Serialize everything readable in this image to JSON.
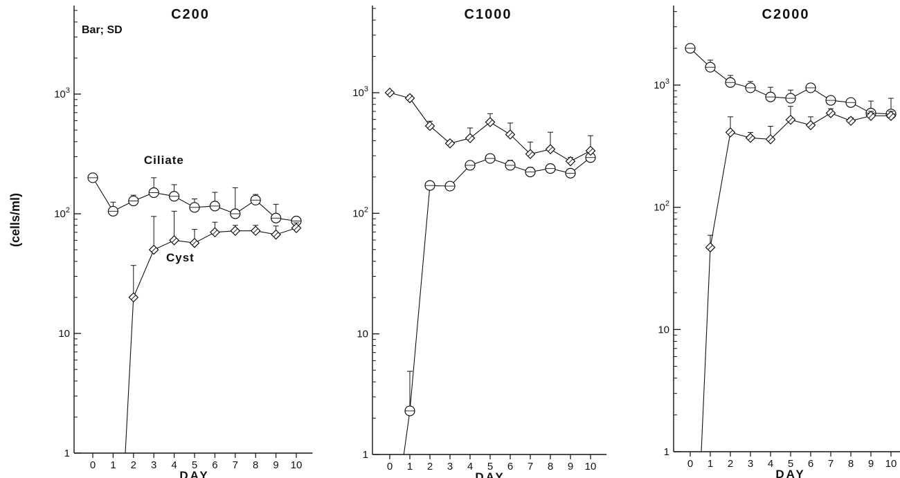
{
  "figure": {
    "ylabel": "(cells/ml)",
    "note": "Bar;  SD"
  },
  "chart_data": [
    {
      "type": "line",
      "title": "C200",
      "xlabel": "DAY",
      "ylabel": "(cells/ml)",
      "y_scale": "log",
      "ylim": [
        1,
        5000
      ],
      "xlim": [
        -0.6,
        10.8
      ],
      "x": [
        0,
        1,
        2,
        3,
        4,
        5,
        6,
        7,
        8,
        9,
        10
      ],
      "x_ticks": [
        "0",
        "1",
        "2",
        "3",
        "4",
        "5",
        "6",
        "7",
        "8",
        "9",
        "10"
      ],
      "y_ticks": [
        {
          "value": 1,
          "label": "1"
        },
        {
          "value": 10,
          "label": "10"
        },
        {
          "value": 100,
          "label": "10",
          "sup": "2"
        },
        {
          "value": 1000,
          "label": "10",
          "sup": "3"
        }
      ],
      "series": [
        {
          "name": "Ciliate",
          "marker": "circle",
          "label_x": 3.5,
          "label_y": 260,
          "x": [
            0,
            1,
            2,
            3,
            4,
            5,
            6,
            7,
            8,
            9,
            10
          ],
          "values": [
            200,
            105,
            128,
            150,
            140,
            113,
            116,
            100,
            130,
            92,
            87
          ],
          "sd": [
            0,
            20,
            15,
            50,
            35,
            20,
            35,
            65,
            15,
            28,
            0
          ]
        },
        {
          "name": "Cyst",
          "marker": "diamond",
          "label_x": 4.3,
          "label_y": 40,
          "line_start": {
            "x": 1.6,
            "y": 1
          },
          "x": [
            2,
            3,
            4,
            5,
            6,
            7,
            8,
            9,
            10
          ],
          "values": [
            20,
            50,
            60,
            57,
            70,
            72,
            72,
            67,
            76
          ],
          "sd": [
            17,
            45,
            45,
            17,
            15,
            8,
            8,
            12,
            8
          ]
        }
      ]
    },
    {
      "type": "line",
      "title": "C1000",
      "xlabel": "DAY",
      "y_scale": "log",
      "ylim": [
        1,
        5000
      ],
      "xlim": [
        -0.6,
        10.8
      ],
      "x": [
        0,
        1,
        2,
        3,
        4,
        5,
        6,
        7,
        8,
        9,
        10
      ],
      "x_ticks": [
        "0",
        "1",
        "2",
        "3",
        "4",
        "5",
        "6",
        "7",
        "8",
        "9",
        "10"
      ],
      "y_ticks": [
        {
          "value": 1,
          "label": "1"
        },
        {
          "value": 10,
          "label": "10"
        },
        {
          "value": 100,
          "label": "10",
          "sup": "2"
        },
        {
          "value": 1000,
          "label": "10",
          "sup": "3"
        }
      ],
      "series": [
        {
          "marker": "circle",
          "line_start": {
            "x": 0.7,
            "y": 1
          },
          "x": [
            1,
            2,
            3,
            4,
            5,
            6,
            7,
            8,
            9,
            10
          ],
          "values": [
            2.3,
            170,
            168,
            250,
            285,
            250,
            220,
            235,
            215,
            290
          ],
          "sd": [
            2.6,
            0,
            0,
            15,
            20,
            25,
            20,
            20,
            0,
            25
          ]
        },
        {
          "marker": "diamond",
          "x": [
            0,
            1,
            2,
            3,
            4,
            5,
            6,
            7,
            8,
            9,
            10
          ],
          "values": [
            1000,
            900,
            530,
            380,
            420,
            570,
            450,
            310,
            340,
            270,
            330
          ],
          "sd": [
            0,
            50,
            50,
            20,
            90,
            100,
            110,
            80,
            130,
            20,
            110
          ]
        }
      ]
    },
    {
      "type": "line",
      "title": "C2000",
      "xlabel": "DAY",
      "y_scale": "log",
      "ylim": [
        1,
        5000
      ],
      "xlim": [
        -0.6,
        10.8
      ],
      "x": [
        0,
        1,
        2,
        3,
        4,
        5,
        6,
        7,
        8,
        9,
        10
      ],
      "x_ticks": [
        "0",
        "1",
        "2",
        "3",
        "4",
        "5",
        "6",
        "7",
        "8",
        "9",
        "10"
      ],
      "y_ticks": [
        {
          "value": 1,
          "label": "1"
        },
        {
          "value": 10,
          "label": "10"
        },
        {
          "value": 100,
          "label": "10",
          "sup": "2"
        },
        {
          "value": 1000,
          "label": "10",
          "sup": "3"
        }
      ],
      "series": [
        {
          "marker": "circle",
          "x": [
            0,
            1,
            2,
            3,
            4,
            5,
            6,
            7,
            8,
            9,
            10
          ],
          "values": [
            2000,
            1400,
            1050,
            950,
            800,
            780,
            950,
            750,
            720,
            590,
            580
          ],
          "sd": [
            0,
            200,
            150,
            120,
            160,
            130,
            80,
            30,
            20,
            150,
            200
          ]
        },
        {
          "marker": "diamond",
          "line_start": {
            "x": 0.55,
            "y": 1
          },
          "x": [
            1,
            2,
            3,
            4,
            5,
            6,
            7,
            8,
            9,
            10
          ],
          "values": [
            47,
            410,
            370,
            360,
            520,
            470,
            590,
            510,
            560,
            560
          ],
          "sd": [
            12,
            140,
            40,
            100,
            150,
            80,
            50,
            30,
            50,
            50
          ]
        }
      ]
    }
  ]
}
